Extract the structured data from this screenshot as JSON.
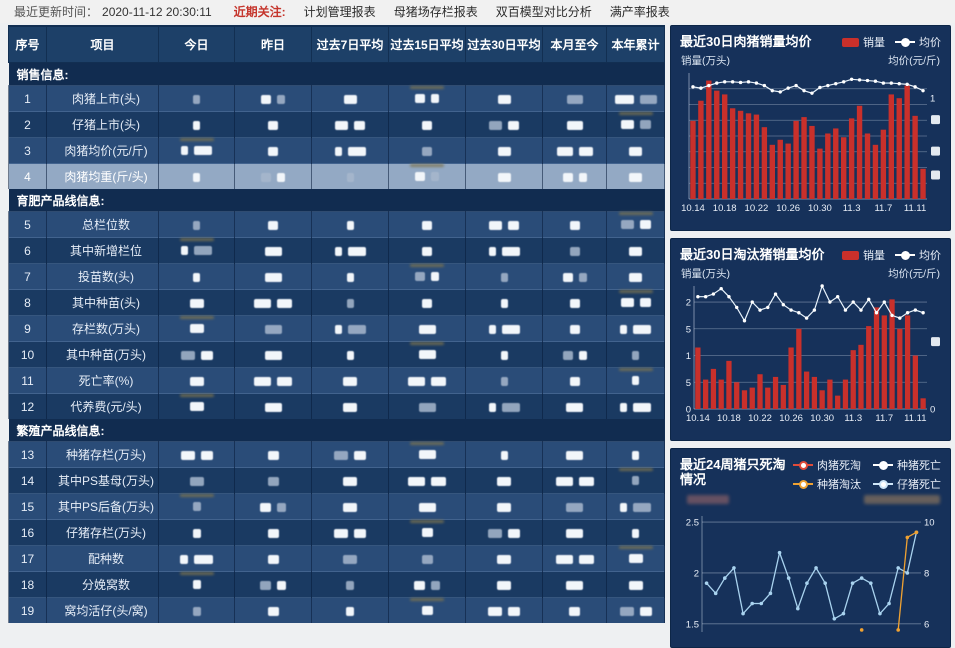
{
  "topbar": {
    "updated_label": "最近更新时间：",
    "updated_value": "2020-11-12 20:30:11",
    "focus_label": "近期关注:",
    "menu": [
      "计划管理报表",
      "母猪场存栏报表",
      "双百模型对比分析",
      "满产率报表"
    ]
  },
  "table": {
    "headers": [
      "序号",
      "项目",
      "今日",
      "昨日",
      "过去7日平均",
      "过去15日平均",
      "过去30日平均",
      "本月至今",
      "本年累计"
    ],
    "values_redacted": true,
    "value_columns": 7,
    "rows": [
      {
        "type": "section",
        "label": "销售信息:"
      },
      {
        "type": "data",
        "no": "1",
        "label": "肉猪上市(头)"
      },
      {
        "type": "data",
        "no": "2",
        "label": "仔猪上市(头)"
      },
      {
        "type": "data",
        "no": "3",
        "label": "肉猪均价(元/斤)"
      },
      {
        "type": "data",
        "no": "4",
        "label": "肉猪均重(斤/头)",
        "highlight": true
      },
      {
        "type": "section",
        "label": "育肥产品线信息:"
      },
      {
        "type": "data",
        "no": "5",
        "label": "总栏位数"
      },
      {
        "type": "data",
        "no": "6",
        "label": "其中新增栏位"
      },
      {
        "type": "data",
        "no": "7",
        "label": "投苗数(头)"
      },
      {
        "type": "data",
        "no": "8",
        "label": "其中种苗(头)"
      },
      {
        "type": "data",
        "no": "9",
        "label": "存栏数(万头)"
      },
      {
        "type": "data",
        "no": "10",
        "label": "其中种苗(万头)"
      },
      {
        "type": "data",
        "no": "11",
        "label": "死亡率(%)"
      },
      {
        "type": "data",
        "no": "12",
        "label": "代养费(元/头)"
      },
      {
        "type": "section",
        "label": "繁殖产品线信息:"
      },
      {
        "type": "data",
        "no": "13",
        "label": "种猪存栏(万头)"
      },
      {
        "type": "data",
        "no": "14",
        "label": "其中PS基母(万头)"
      },
      {
        "type": "data",
        "no": "15",
        "label": "其中PS后备(万头)"
      },
      {
        "type": "data",
        "no": "16",
        "label": "仔猪存栏(万头)"
      },
      {
        "type": "data",
        "no": "17",
        "label": "配种数"
      },
      {
        "type": "data",
        "no": "18",
        "label": "分娩窝数"
      },
      {
        "type": "data",
        "no": "19",
        "label": "窝均活仔(头/窝)"
      }
    ]
  },
  "colors": {
    "bar_red": "#c9302b",
    "line_white": "#e8f3fc",
    "line_blue": "#a9d3ef",
    "line_orange": "#f0a232",
    "panel_navy": "#16315a",
    "row_light": "#2a4c78",
    "row_dark": "#1a3a62",
    "row_highlight": "#93a9c4",
    "focus_red": "#c5352c"
  },
  "chart_data": [
    {
      "type": "bar+line",
      "title": "最近30日肉猪销量均价",
      "legend": [
        {
          "name": "销量",
          "marker": "bar",
          "color": "#c9302b"
        },
        {
          "name": "均价",
          "marker": "line-dot",
          "color": "#ffffff"
        }
      ],
      "axis_label_left": "销量(万头)",
      "axis_label_right": "均价(元/斤)",
      "x_labels": [
        "10.14",
        "10.18",
        "10.22",
        "10.26",
        "10.30",
        "11.3",
        "11.7",
        "11.11"
      ],
      "x_label_every": 4,
      "value_axis": {
        "min": 0,
        "max": 10,
        "left_tick_labels_redacted": true
      },
      "grid_values": [
        1.25,
        2.5,
        3.75,
        5,
        6.25,
        7.5,
        8.75
      ],
      "bars": [
        6.2,
        7.8,
        9.4,
        8.6,
        8.3,
        7.2,
        7.0,
        6.8,
        6.7,
        5.7,
        4.3,
        4.7,
        4.4,
        6.2,
        6.5,
        5.8,
        4.0,
        5.2,
        5.6,
        4.9,
        6.4,
        7.4,
        5.2,
        4.3,
        5.5,
        8.3,
        8.0,
        9.0,
        6.6,
        2.4
      ],
      "line": [
        8.9,
        8.8,
        9.0,
        9.2,
        9.3,
        9.3,
        9.25,
        9.3,
        9.2,
        9.0,
        8.6,
        8.5,
        8.8,
        9.0,
        8.6,
        8.4,
        8.85,
        9.0,
        9.15,
        9.3,
        9.5,
        9.45,
        9.4,
        9.35,
        9.2,
        9.2,
        9.15,
        9.1,
        8.9,
        8.6
      ],
      "left_ticks": [],
      "right_ticks": [
        {
          "v": 8,
          "label": "1"
        },
        {
          "v": 6.3,
          "redacted": true
        },
        {
          "v": 3.8,
          "redacted": true
        },
        {
          "v": 1.9,
          "redacted": true
        }
      ]
    },
    {
      "type": "bar+line",
      "title": "最近30日淘汰猪销量均价",
      "legend": [
        {
          "name": "销量",
          "marker": "bar",
          "color": "#c9302b"
        },
        {
          "name": "均价",
          "marker": "line-dot",
          "color": "#ffffff"
        }
      ],
      "axis_label_left": "销量(万头)",
      "axis_label_right": "均价(元/斤)",
      "x_labels": [
        "10.14",
        "10.18",
        "10.22",
        "10.26",
        "10.30",
        "11.3",
        "11.7",
        "11.11"
      ],
      "x_label_every": 4,
      "value_axis": {
        "min": 0,
        "max": 2.3,
        "step": 0.5,
        "note": "0.5 and 1.5 tick labels partially redacted, only trailing 5 visible"
      },
      "grid_values": [
        0.5,
        1,
        1.5,
        2
      ],
      "bars": [
        1.15,
        0.55,
        0.75,
        0.55,
        0.9,
        0.5,
        0.35,
        0.4,
        0.65,
        0.4,
        0.6,
        0.45,
        1.15,
        1.5,
        0.7,
        0.6,
        0.35,
        0.55,
        0.25,
        0.55,
        1.1,
        1.2,
        1.55,
        1.9,
        1.75,
        2.05,
        1.5,
        1.75,
        1.0,
        0.2
      ],
      "line": [
        2.1,
        2.1,
        2.15,
        2.25,
        2.1,
        1.9,
        1.65,
        2.0,
        1.85,
        1.9,
        2.15,
        1.95,
        1.85,
        1.8,
        1.7,
        1.85,
        2.3,
        2.0,
        2.1,
        1.85,
        2.0,
        1.85,
        2.05,
        1.8,
        2.0,
        1.75,
        1.7,
        1.8,
        1.85,
        1.8
      ],
      "left_ticks": [
        {
          "v": 0,
          "label": "0"
        },
        {
          "v": 0.5,
          "label": "5"
        },
        {
          "v": 1,
          "label": "1"
        },
        {
          "v": 1.5,
          "label": "5"
        },
        {
          "v": 2,
          "label": "2"
        }
      ],
      "right_ticks": [
        {
          "v": 0,
          "label": "0"
        },
        {
          "v": 1.26,
          "redacted": true
        }
      ]
    },
    {
      "type": "line",
      "title": "最近24周猪只死淘情况",
      "legend": [
        {
          "name": "肉猪死淘",
          "color": "#e04b3a"
        },
        {
          "name": "种猪死亡",
          "color": "#ffffff"
        },
        {
          "name": "种猪淘汰",
          "color": "#f0a232"
        },
        {
          "name": "仔猪死亡",
          "color": "#cfe6f8"
        }
      ],
      "axis_labels_redacted": true,
      "value_axis": {
        "min": 1.42,
        "max": 2.56
      },
      "grid_values": [
        1.5,
        2,
        2.5
      ],
      "left_ticks": [
        {
          "v": 1.5,
          "label": "1.5"
        },
        {
          "v": 2,
          "label": "2"
        },
        {
          "v": 2.5,
          "label": "2.5"
        }
      ],
      "right_ticks": [
        {
          "v": 1.5,
          "label": "6"
        },
        {
          "v": 2,
          "label": "8"
        },
        {
          "v": 2.5,
          "label": "10"
        }
      ],
      "lines": [
        {
          "color": "#a9d3ef",
          "values": [
            1.9,
            1.8,
            1.95,
            2.05,
            1.6,
            1.7,
            1.7,
            1.8,
            2.2,
            1.95,
            1.65,
            1.9,
            2.05,
            1.9,
            1.55,
            1.6,
            1.9,
            1.95,
            1.9,
            1.6,
            1.7,
            2.05,
            2.0,
            2.4
          ]
        },
        {
          "color": "#f0a232",
          "values": [
            null,
            null,
            null,
            null,
            null,
            null,
            null,
            null,
            null,
            null,
            null,
            null,
            null,
            null,
            null,
            null,
            null,
            1.44,
            null,
            null,
            null,
            1.44,
            2.35,
            2.4
          ]
        }
      ]
    }
  ]
}
